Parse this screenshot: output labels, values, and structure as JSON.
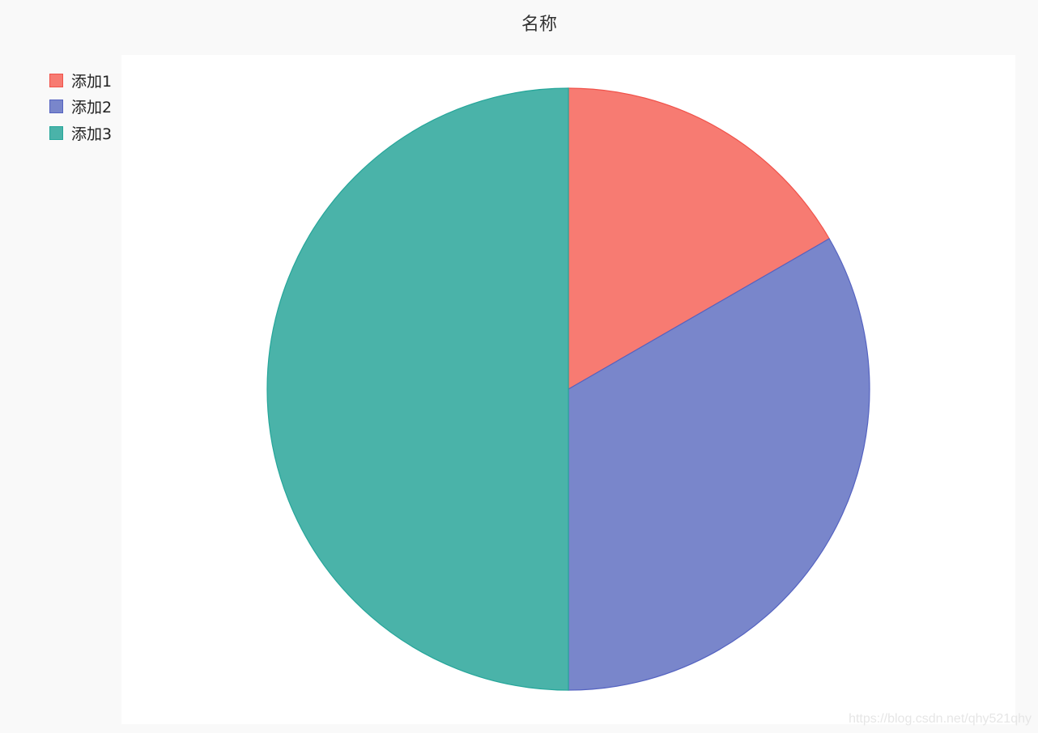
{
  "chart_data": {
    "type": "pie",
    "title": "名称",
    "categories": [
      "添加1",
      "添加2",
      "添加3"
    ],
    "values": [
      1,
      2,
      3
    ],
    "colors": [
      "#f77b72",
      "#7986cb",
      "#4ab3a9"
    ],
    "stroke_colors": [
      "#f0524a",
      "#5563c1",
      "#26a69a"
    ],
    "legend_position": "top-left",
    "start_angle": "12 o'clock, clockwise"
  },
  "watermark": "https://blog.csdn.net/qhy521qhy"
}
